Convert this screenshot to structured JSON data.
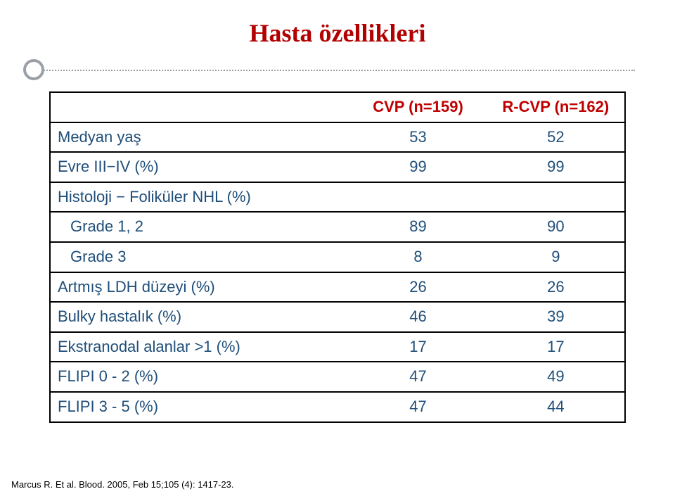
{
  "title": {
    "text": "Hasta özellikleri",
    "color": "#b20000",
    "fontsize": 36
  },
  "decor": {
    "line_color": "#9aa0a6",
    "circle_border_color": "#9aa0a6"
  },
  "table": {
    "border_color": "#000000",
    "border_width": 2,
    "header_color": "#c00000",
    "row_label_color": "#1f4e79",
    "value_color": "#1f4e79",
    "fontsize": 22,
    "col_widths": [
      "52%",
      "24%",
      "24%"
    ],
    "columns": [
      "",
      "CVP (n=159)",
      "R-CVP (n=162)"
    ],
    "rows": [
      {
        "label": "Medyan yaş",
        "indent": false,
        "cvp": "53",
        "rcvp": "52"
      },
      {
        "label": "Evre III−IV (%)",
        "indent": false,
        "cvp": "99",
        "rcvp": "99"
      },
      {
        "label": "Histoloji − Foliküler NHL (%)",
        "indent": false,
        "cvp": "",
        "rcvp": ""
      },
      {
        "label": "Grade 1, 2",
        "indent": true,
        "cvp": "89",
        "rcvp": "90"
      },
      {
        "label": "Grade 3",
        "indent": true,
        "cvp": "8",
        "rcvp": "9"
      },
      {
        "label": "Artmış LDH düzeyi (%)",
        "indent": false,
        "cvp": "26",
        "rcvp": "26"
      },
      {
        "label": "Bulky hastalık (%)",
        "indent": false,
        "cvp": "46",
        "rcvp": "39"
      },
      {
        "label": "Ekstranodal alanlar >1 (%)",
        "indent": false,
        "cvp": "17",
        "rcvp": "17"
      },
      {
        "label": "FLIPI 0 - 2 (%)",
        "indent": false,
        "cvp": "47",
        "rcvp": "49"
      },
      {
        "label": "FLIPI 3 - 5 (%)",
        "indent": false,
        "cvp": "47",
        "rcvp": "44"
      }
    ]
  },
  "footer": {
    "text": "Marcus R. Et al. Blood. 2005, Feb 15;105 (4): 1417-23.",
    "color": "#000000",
    "fontsize": 13
  }
}
